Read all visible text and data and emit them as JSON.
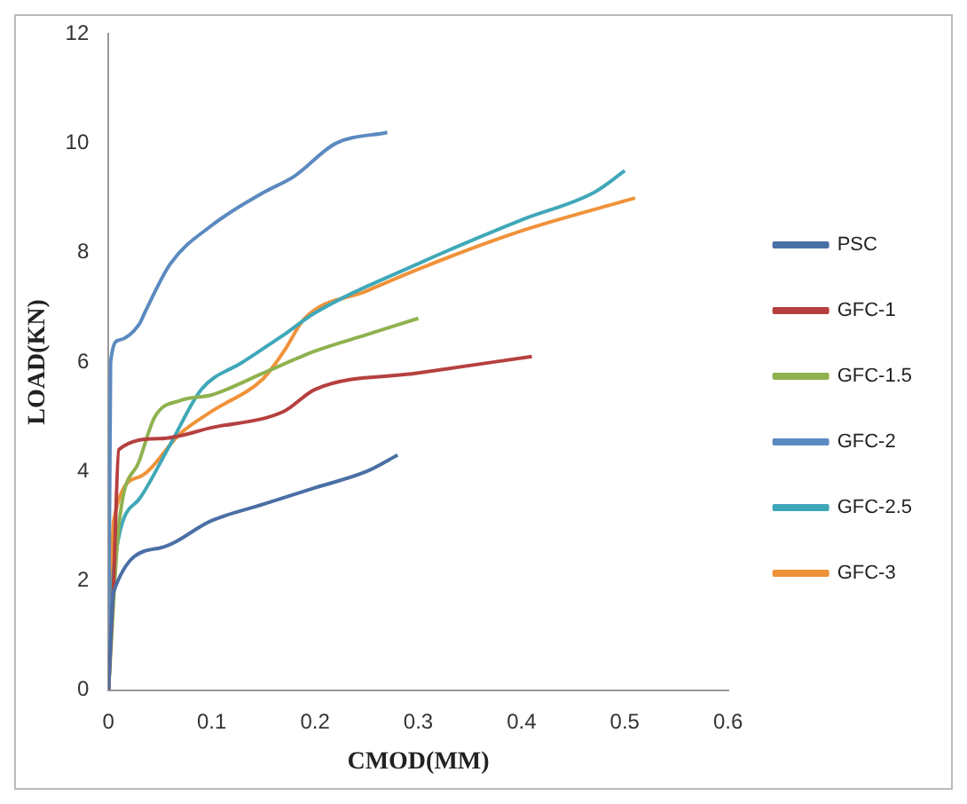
{
  "chart_data": {
    "type": "line",
    "xlabel": "CMOD(MM)",
    "ylabel": "LOAD(KN)",
    "xlim": [
      0,
      0.6
    ],
    "xticks": [
      0,
      0.1,
      0.2,
      0.3,
      0.4,
      0.5,
      0.6
    ],
    "ylim": [
      0,
      12
    ],
    "yticks": [
      0,
      2,
      4,
      6,
      8,
      10,
      12
    ],
    "grid": false,
    "legend": "right",
    "marker": "none",
    "line_style": "solid",
    "series": [
      {
        "name": "PSC",
        "color": "#4a6fa5",
        "x": [
          0,
          0.005,
          0.05,
          0.1,
          0.15,
          0.2,
          0.25,
          0.28
        ],
        "values": [
          0,
          1.8,
          2.6,
          3.1,
          3.4,
          3.7,
          4.0,
          4.3
        ]
      },
      {
        "name": "GFC-1",
        "color": "#b5403f",
        "x": [
          0,
          0.005,
          0.01,
          0.05,
          0.1,
          0.17,
          0.2,
          0.3,
          0.41
        ],
        "values": [
          0,
          2,
          4.4,
          4.6,
          4.8,
          5.1,
          5.5,
          5.8,
          6.1
        ]
      },
      {
        "name": "GFC-1.5",
        "color": "#8fb24f",
        "x": [
          0,
          0.01,
          0.03,
          0.045,
          0.07,
          0.1,
          0.15,
          0.2,
          0.25,
          0.3
        ],
        "values": [
          0,
          3.0,
          4.2,
          5.0,
          5.3,
          5.4,
          5.8,
          6.2,
          6.5,
          6.8
        ]
      },
      {
        "name": "GFC-2",
        "color": "#5b8ac0",
        "x": [
          0,
          0.002,
          0.01,
          0.03,
          0.035,
          0.06,
          0.1,
          0.15,
          0.18,
          0.22,
          0.27
        ],
        "values": [
          0,
          6.0,
          6.4,
          6.7,
          6.9,
          7.8,
          8.5,
          9.1,
          9.4,
          10.0,
          10.2
        ]
      },
      {
        "name": "GFC-2.5",
        "color": "#3fa8b8",
        "x": [
          0,
          0.005,
          0.03,
          0.06,
          0.09,
          0.13,
          0.17,
          0.2,
          0.3,
          0.4,
          0.47,
          0.5
        ],
        "values": [
          0,
          2.2,
          3.5,
          4.5,
          5.5,
          6.0,
          6.5,
          6.9,
          7.8,
          8.6,
          9.1,
          9.5
        ]
      },
      {
        "name": "GFC-3",
        "color": "#f0923a",
        "x": [
          0,
          0.005,
          0.03,
          0.07,
          0.1,
          0.15,
          0.17,
          0.19,
          0.25,
          0.3,
          0.4,
          0.51
        ],
        "values": [
          0,
          3.1,
          3.9,
          4.7,
          5.1,
          5.7,
          6.2,
          6.8,
          7.3,
          7.7,
          8.4,
          9.0
        ]
      }
    ]
  }
}
